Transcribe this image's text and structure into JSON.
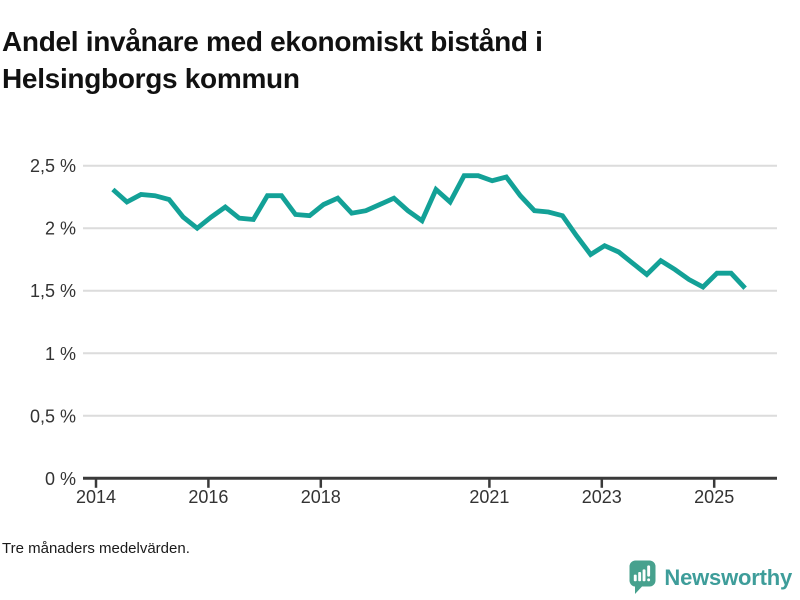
{
  "title_lines": [
    "Andel invånare med ekonomiskt bistånd i",
    "Helsingborgs kommun"
  ],
  "footnote": "Tre månaders medelvärden.",
  "brand": {
    "name": "Newsworthy",
    "icon": "newsworthy-speech-bubble-bar-chart-icon",
    "text_color": "#3e9d9a",
    "icon_color": "#47a18e"
  },
  "colors": {
    "line": "#13a197",
    "grid": "#dcdcdc",
    "axis": "#3a3a3a",
    "tick_text": "#333333",
    "title_text": "#111111"
  },
  "chart_data": {
    "type": "line",
    "title": "Andel invånare med ekonomiskt bistånd i Helsingborgs kommun",
    "subtitle": "Tre månaders medelvärden.",
    "xlabel": "",
    "ylabel": "",
    "unit": "%",
    "grid": true,
    "legend": false,
    "xlim": [
      2013.77,
      2026.12
    ],
    "ylim": [
      0,
      2.7
    ],
    "x_ticks": [
      2014,
      2016,
      2018,
      2021,
      2023,
      2025
    ],
    "x_tick_labels": [
      "2014",
      "2016",
      "2018",
      "2021",
      "2023",
      "2025"
    ],
    "y_ticks": [
      0,
      0.5,
      1,
      1.5,
      2,
      2.5
    ],
    "y_tick_labels": [
      "0 %",
      "0,5 %",
      "1 %",
      "1,5 %",
      "2 %",
      "2,5 %"
    ],
    "series": [
      {
        "x_start": 2014.3,
        "x_step": 0.25,
        "values": [
          2.31,
          2.21,
          2.27,
          2.26,
          2.23,
          2.09,
          2.0,
          2.09,
          2.17,
          2.08,
          2.07,
          2.26,
          2.26,
          2.11,
          2.1,
          2.19,
          2.24,
          2.12,
          2.14,
          2.19,
          2.24,
          2.14,
          2.06,
          2.31,
          2.21,
          2.42,
          2.42,
          2.38,
          2.41,
          2.26,
          2.14,
          2.13,
          2.1,
          1.94,
          1.79,
          1.86,
          1.81,
          1.72,
          1.63,
          1.74,
          1.67,
          1.59,
          1.53,
          1.64,
          1.64,
          1.52
        ]
      }
    ]
  }
}
